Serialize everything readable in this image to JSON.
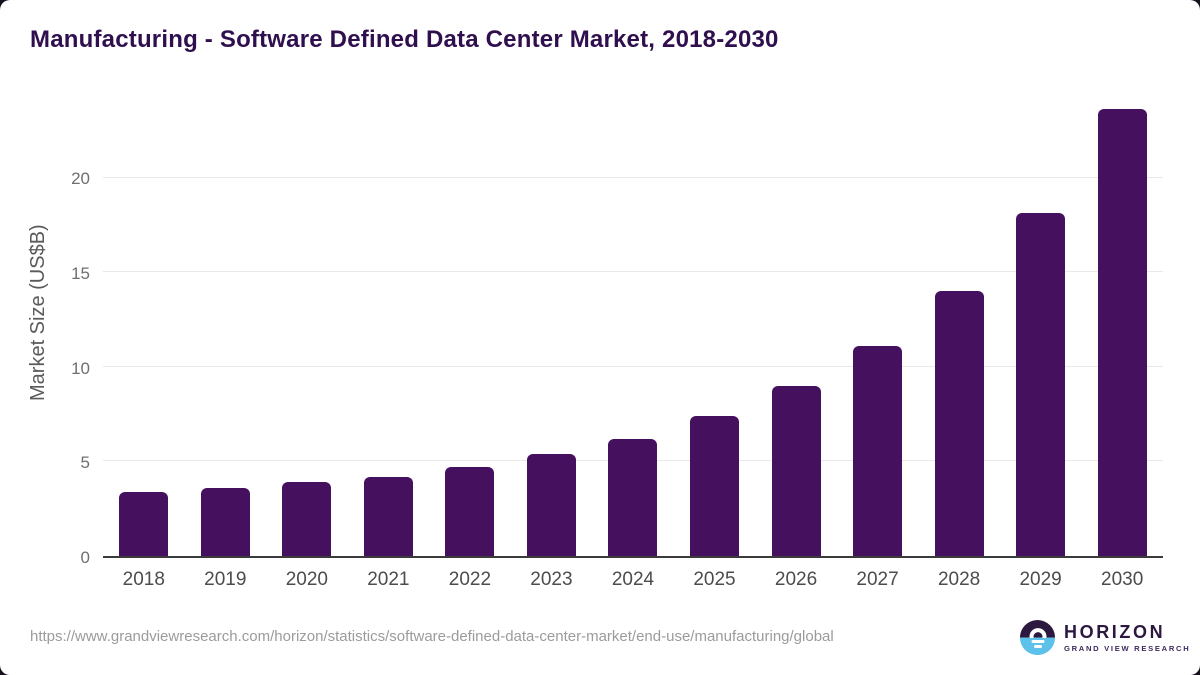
{
  "header": {
    "title": "Manufacturing - Software Defined Data Center Market, 2018-2030"
  },
  "footer": {
    "source_url": "https://www.grandviewresearch.com/horizon/statistics/software-defined-data-center-market/end-use/manufacturing/global",
    "brand": {
      "name": "HORIZON",
      "subtitle": "GRAND VIEW RESEARCH",
      "icon": "sun-over-horizon-icon"
    }
  },
  "colors": {
    "bar": "#45105e",
    "title_text": "#2f0f4e",
    "axis_line": "#3b3b3b",
    "gridline": "#e9e9e9",
    "y_tick_label": "#6f6f6f",
    "x_label": "#4c4c4c",
    "y_axis_title": "#5a5a5a",
    "url_text": "#9b9b9b",
    "logo_purple": "#2d1940",
    "logo_blue": "#5ec1ea",
    "page_background": "#17111d",
    "card_background": "#ffffff"
  },
  "chart_data": {
    "type": "bar",
    "title": "Manufacturing - Software Defined Data Center Market, 2018-2030",
    "categories": [
      "2018",
      "2019",
      "2020",
      "2021",
      "2022",
      "2023",
      "2024",
      "2025",
      "2026",
      "2027",
      "2028",
      "2029",
      "2030"
    ],
    "values": [
      3.4,
      3.6,
      3.9,
      4.2,
      4.7,
      5.4,
      6.2,
      7.4,
      9.0,
      11.1,
      14.0,
      18.1,
      23.6
    ],
    "xlabel": "",
    "ylabel": "Market Size (US$B)",
    "yticks": [
      0,
      5,
      10,
      15,
      20
    ],
    "ylim": [
      0,
      24.2
    ],
    "grid": "horizontal-only",
    "legend": "none",
    "bar_color": "#45105e"
  }
}
